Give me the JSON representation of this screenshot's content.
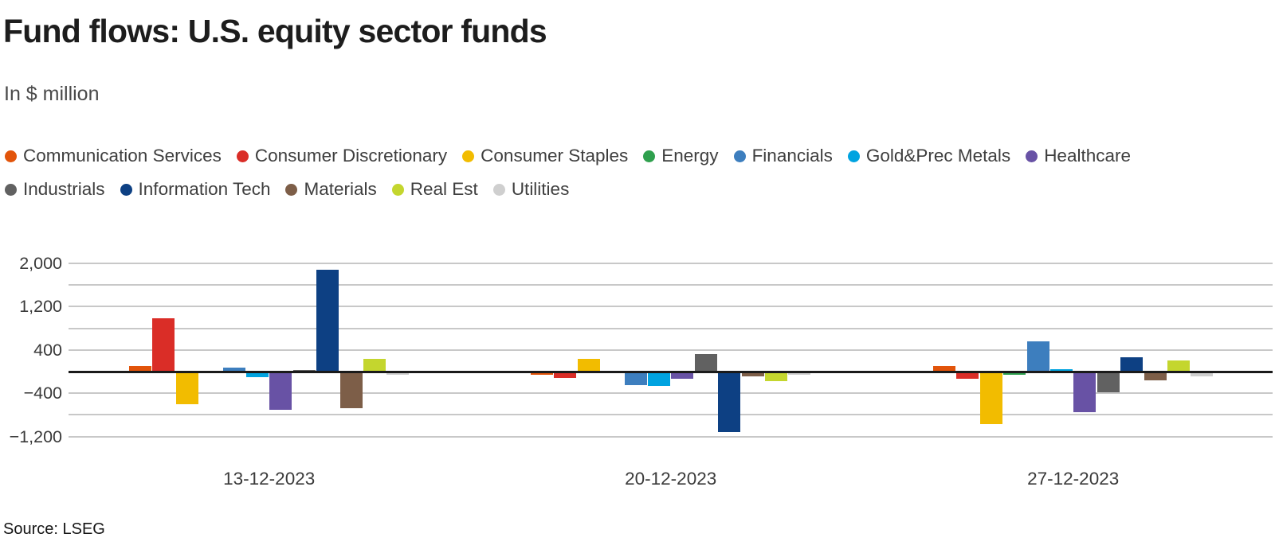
{
  "header": {
    "title": "Fund flows: U.S. equity sector funds",
    "subtitle": "In $ million"
  },
  "footer": {
    "source": "Source: LSEG"
  },
  "chart_data": {
    "type": "bar",
    "title": "Fund flows: U.S. equity sector funds",
    "unit_label": "In $ million",
    "categories": [
      "13-12-2023",
      "20-12-2023",
      "27-12-2023"
    ],
    "series": [
      {
        "name": "Communication Services",
        "color": "#E2540A",
        "values": [
          110,
          -50,
          110
        ]
      },
      {
        "name": "Consumer Discretionary",
        "color": "#DA2D27",
        "values": [
          980,
          -110,
          -120
        ]
      },
      {
        "name": "Consumer Staples",
        "color": "#F2BC00",
        "values": [
          -590,
          240,
          -950
        ]
      },
      {
        "name": "Energy",
        "color": "#2FA04E",
        "values": [
          0,
          0,
          -50
        ]
      },
      {
        "name": "Financials",
        "color": "#3D7EBE",
        "values": [
          80,
          -235,
          560
        ]
      },
      {
        "name": "Gold&Prec Metals",
        "color": "#00A3E0",
        "values": [
          -90,
          -250,
          40
        ]
      },
      {
        "name": "Healthcare",
        "color": "#6852A5",
        "values": [
          -690,
          -115,
          -740
        ]
      },
      {
        "name": "Industrials",
        "color": "#616161",
        "values": [
          30,
          330,
          -370
        ]
      },
      {
        "name": "Information Tech",
        "color": "#0D4083",
        "values": [
          1880,
          -1100,
          270
        ]
      },
      {
        "name": "Materials",
        "color": "#7D5E48",
        "values": [
          -660,
          -70,
          -140
        ]
      },
      {
        "name": "Real Est",
        "color": "#C4D62E",
        "values": [
          240,
          -160,
          200
        ]
      },
      {
        "name": "Utilities",
        "color": "#CFCFCF",
        "values": [
          -50,
          -50,
          -70
        ]
      }
    ],
    "y_axis": {
      "tick_labels": [
        "2,000",
        "1,200",
        "400",
        "−400",
        "−1,200"
      ],
      "tick_values": [
        2000,
        1200,
        400,
        -400,
        -1200
      ],
      "gridline_step": 400,
      "range": [
        -1200,
        2000
      ]
    },
    "legend_position": "top",
    "grid": true,
    "zero_line": true
  }
}
